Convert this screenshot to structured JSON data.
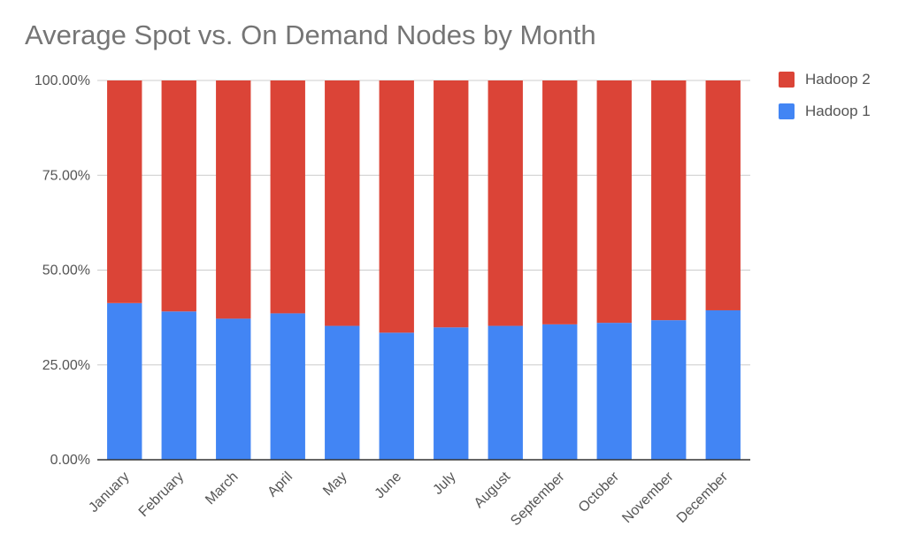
{
  "chart_data": {
    "type": "bar",
    "stacked": true,
    "title": "Average Spot vs. On Demand Nodes by Month",
    "xlabel": "",
    "ylabel": "",
    "categories": [
      "January",
      "February",
      "March",
      "April",
      "May",
      "June",
      "July",
      "August",
      "September",
      "October",
      "November",
      "December"
    ],
    "series": [
      {
        "name": "Hadoop 1",
        "color": "#4285f4",
        "values": [
          41.3,
          39.1,
          37.2,
          38.6,
          35.3,
          33.5,
          34.9,
          35.3,
          35.7,
          36.1,
          36.8,
          39.4
        ]
      },
      {
        "name": "Hadoop 2",
        "color": "#db4437",
        "values": [
          58.7,
          60.9,
          62.8,
          61.4,
          64.7,
          66.5,
          65.1,
          64.7,
          64.3,
          63.9,
          63.2,
          60.6
        ]
      }
    ],
    "ylim": [
      0,
      100
    ],
    "yticks": [
      "0.00%",
      "25.00%",
      "50.00%",
      "75.00%",
      "100.00%"
    ],
    "grid": true,
    "legend": {
      "position": "right",
      "entries": [
        "Hadoop 2",
        "Hadoop 1"
      ]
    }
  }
}
